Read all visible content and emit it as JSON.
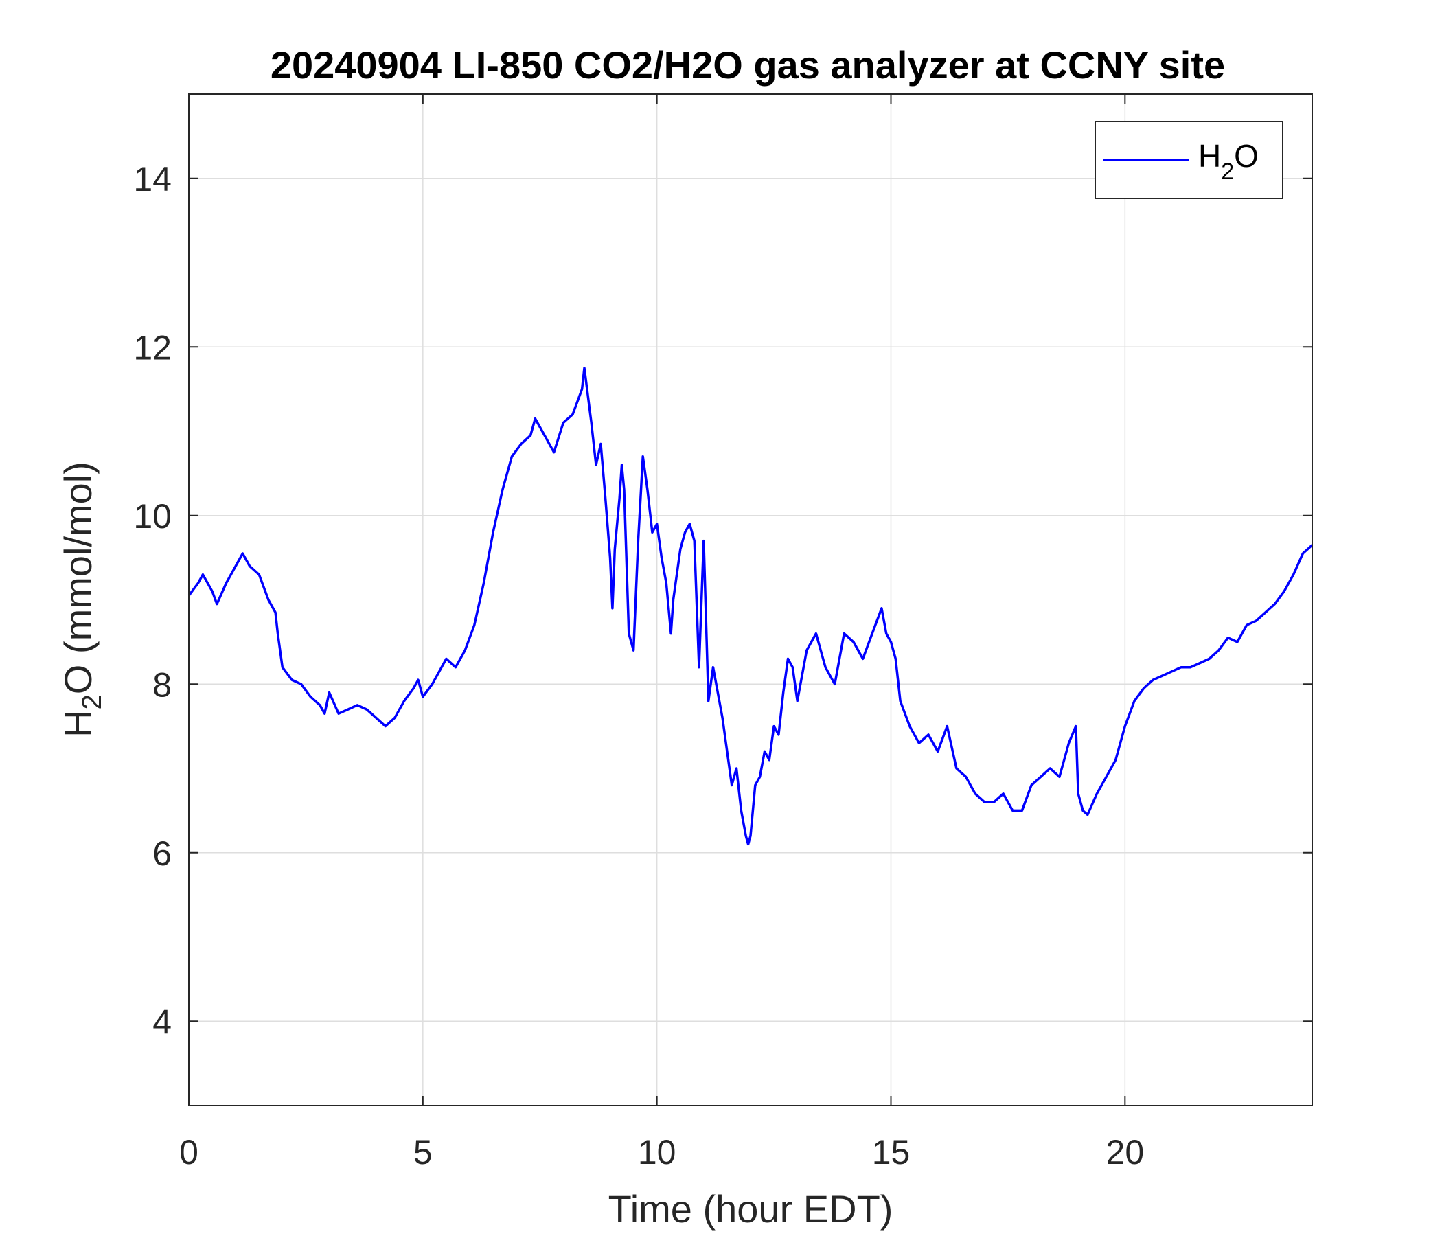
{
  "chart_data": {
    "type": "line",
    "title": "20240904 LI-850 CO2/H2O gas analyzer at CCNY site",
    "xlabel": "Time (hour EDT)",
    "ylabel": {
      "base": "H",
      "sub": "2",
      "rest": "O (mmol/mol)"
    },
    "xlim": [
      0,
      24
    ],
    "ylim": [
      3,
      15
    ],
    "xticks": [
      0,
      5,
      10,
      15,
      20
    ],
    "yticks": [
      4,
      6,
      8,
      10,
      12,
      14
    ],
    "grid": true,
    "legend_position": "top-right",
    "series": [
      {
        "legend": {
          "base": "H",
          "sub": "2",
          "rest": "O"
        },
        "color": "#0000ff",
        "x": [
          0,
          0.2,
          0.3,
          0.5,
          0.6,
          0.8,
          1.0,
          1.15,
          1.3,
          1.5,
          1.7,
          1.85,
          1.9,
          2.0,
          2.2,
          2.4,
          2.6,
          2.8,
          2.9,
          3.0,
          3.2,
          3.4,
          3.6,
          3.8,
          4.0,
          4.2,
          4.4,
          4.6,
          4.8,
          4.9,
          5.0,
          5.2,
          5.4,
          5.5,
          5.7,
          5.9,
          6.1,
          6.3,
          6.5,
          6.7,
          6.9,
          7.1,
          7.3,
          7.4,
          7.6,
          7.8,
          8.0,
          8.2,
          8.4,
          8.45,
          8.6,
          8.7,
          8.8,
          8.9,
          9.0,
          9.05,
          9.1,
          9.2,
          9.25,
          9.3,
          9.4,
          9.5,
          9.6,
          9.7,
          9.8,
          9.9,
          10.0,
          10.1,
          10.2,
          10.3,
          10.35,
          10.4,
          10.5,
          10.6,
          10.7,
          10.8,
          10.9,
          11.0,
          11.1,
          11.2,
          11.3,
          11.4,
          11.5,
          11.6,
          11.7,
          11.8,
          11.9,
          11.95,
          12.0,
          12.1,
          12.2,
          12.3,
          12.4,
          12.5,
          12.6,
          12.7,
          12.8,
          12.9,
          13.0,
          13.2,
          13.4,
          13.6,
          13.8,
          14.0,
          14.2,
          14.4,
          14.6,
          14.8,
          14.9,
          15.0,
          15.1,
          15.2,
          15.4,
          15.6,
          15.8,
          16.0,
          16.2,
          16.4,
          16.6,
          16.8,
          17.0,
          17.2,
          17.4,
          17.6,
          17.8,
          18.0,
          18.2,
          18.4,
          18.6,
          18.8,
          18.95,
          19.0,
          19.1,
          19.2,
          19.4,
          19.6,
          19.8,
          20.0,
          20.2,
          20.4,
          20.6,
          20.8,
          21.0,
          21.2,
          21.4,
          21.6,
          21.8,
          22.0,
          22.2,
          22.4,
          22.6,
          22.8,
          23.0,
          23.2,
          23.4,
          23.6,
          23.8,
          24.0
        ],
        "y": [
          9.05,
          9.2,
          9.3,
          9.1,
          8.95,
          9.2,
          9.4,
          9.55,
          9.4,
          9.3,
          9.0,
          8.85,
          8.6,
          8.2,
          8.05,
          8.0,
          7.85,
          7.75,
          7.65,
          7.9,
          7.65,
          7.7,
          7.75,
          7.7,
          7.6,
          7.5,
          7.6,
          7.8,
          7.95,
          8.05,
          7.85,
          8.0,
          8.2,
          8.3,
          8.2,
          8.4,
          8.7,
          9.2,
          9.8,
          10.3,
          10.7,
          10.85,
          10.95,
          11.15,
          10.95,
          10.75,
          11.1,
          11.2,
          11.5,
          11.75,
          11.1,
          10.6,
          10.85,
          10.2,
          9.5,
          8.9,
          9.6,
          10.2,
          10.6,
          10.3,
          8.6,
          8.4,
          9.7,
          10.7,
          10.3,
          9.8,
          9.9,
          9.5,
          9.2,
          8.6,
          9.0,
          9.2,
          9.6,
          9.8,
          9.9,
          9.7,
          8.2,
          9.7,
          7.8,
          8.2,
          7.9,
          7.6,
          7.2,
          6.8,
          7.0,
          6.5,
          6.2,
          6.1,
          6.2,
          6.8,
          6.9,
          7.2,
          7.1,
          7.5,
          7.4,
          7.9,
          8.3,
          8.2,
          7.8,
          8.4,
          8.6,
          8.2,
          8.0,
          8.6,
          8.5,
          8.3,
          8.6,
          8.9,
          8.6,
          8.5,
          8.3,
          7.8,
          7.5,
          7.3,
          7.4,
          7.2,
          7.5,
          7.0,
          6.9,
          6.7,
          6.6,
          6.6,
          6.7,
          6.5,
          6.5,
          6.8,
          6.9,
          7.0,
          6.9,
          7.3,
          7.5,
          6.7,
          6.5,
          6.45,
          6.7,
          6.9,
          7.1,
          7.5,
          7.8,
          7.95,
          8.05,
          8.1,
          8.15,
          8.2,
          8.2,
          8.25,
          8.3,
          8.4,
          8.55,
          8.5,
          8.7,
          8.75,
          8.85,
          8.95,
          9.1,
          9.3,
          9.55,
          9.65
        ]
      }
    ]
  }
}
